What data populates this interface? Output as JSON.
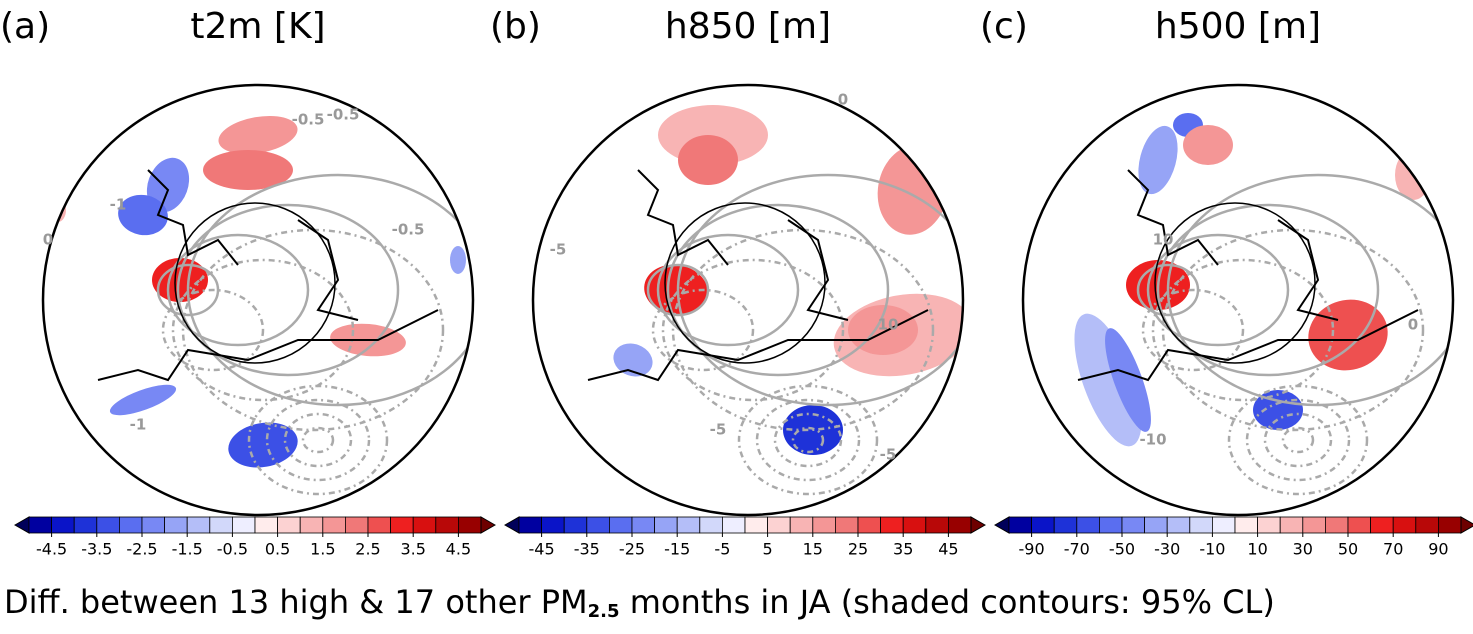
{
  "figure": {
    "caption": {
      "text_before": "Diff. between 13 high & 17 other PM",
      "subscript": "2.5",
      "text_after": " months in JA (shaded contours: 95% CL)"
    },
    "colors": [
      "#00005a",
      "#0000a0",
      "#0a14c8",
      "#1e32d8",
      "#3c50e6",
      "#5a6ef0",
      "#7888f4",
      "#96a4f6",
      "#b4bef8",
      "#d2d8fa",
      "#eeeeff",
      "#ffecec",
      "#fcd2d2",
      "#f8b4b4",
      "#f49696",
      "#f07878",
      "#ee5050",
      "#ee2020",
      "#d81010",
      "#b80808",
      "#980000",
      "#6e0000"
    ],
    "panels": [
      {
        "label": "(a)",
        "title": "t2m [K]",
        "clim": [
          -5,
          5
        ],
        "colorbar_ticks": [
          -4.5,
          -3.5,
          -2.5,
          -1.5,
          -0.5,
          0.5,
          1.5,
          2.5,
          3.5,
          4.5
        ],
        "contour_labels": [
          "-0.5",
          "-1",
          "-0.5",
          "0",
          "-0.5",
          "-1"
        ]
      },
      {
        "label": "(b)",
        "title": "h850 [m]",
        "clim": [
          -50,
          50
        ],
        "colorbar_ticks": [
          -45,
          -35,
          -25,
          -15,
          -5,
          5,
          15,
          25,
          35,
          45
        ],
        "contour_labels": [
          "0",
          "-5",
          "10",
          "-5",
          "-5"
        ]
      },
      {
        "label": "(c)",
        "title": "h500 [m]",
        "clim": [
          -100,
          100
        ],
        "colorbar_ticks": [
          -90,
          -70,
          -50,
          -30,
          -10,
          10,
          30,
          50,
          70,
          90
        ],
        "contour_labels": [
          "10",
          "-10",
          "0"
        ]
      }
    ]
  }
}
